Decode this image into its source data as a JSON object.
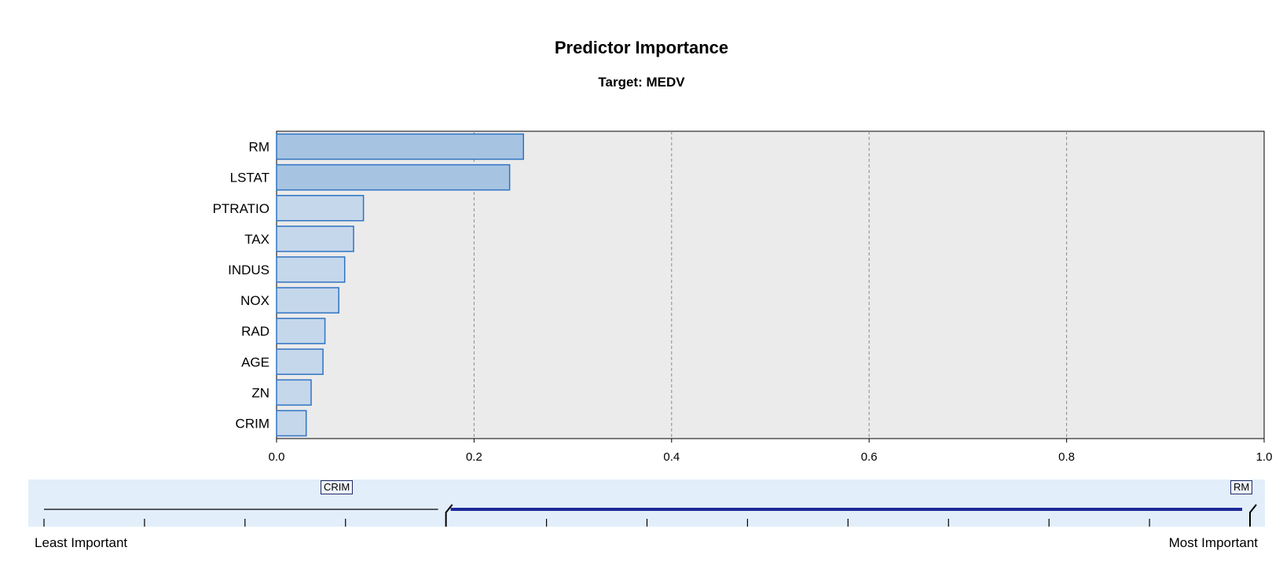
{
  "chart_data": {
    "type": "bar",
    "orientation": "horizontal",
    "title": "Predictor Importance",
    "subtitle": "Target: MEDV",
    "categories": [
      "RM",
      "LSTAT",
      "PTRATIO",
      "TAX",
      "INDUS",
      "NOX",
      "RAD",
      "AGE",
      "ZN",
      "CRIM"
    ],
    "values": [
      0.25,
      0.236,
      0.088,
      0.078,
      0.069,
      0.063,
      0.049,
      0.047,
      0.035,
      0.03
    ],
    "xlim": [
      0,
      1.0
    ],
    "xticks": [
      "0.0",
      "0.2",
      "0.4",
      "0.6",
      "0.8",
      "1.0"
    ],
    "xtick_values": [
      0,
      0.2,
      0.4,
      0.6,
      0.8,
      1.0
    ],
    "grid": "vertical-dashed",
    "colors": {
      "plot_background": "#ebebeb",
      "bar_top_fill": "#a6c4e2",
      "bar_fill": "#c5d7ea",
      "bar_stroke": "#2f73c4",
      "grid": "#8a8a8a"
    },
    "top_highlight_count": 2
  },
  "slider": {
    "left_flag": "CRIM",
    "right_flag": "RM",
    "least_label": "Least Important",
    "most_label": "Most Important",
    "range_start": 0.3333,
    "range_end": 1.0,
    "tick_count": 13,
    "colors": {
      "panel": "#e2eefa",
      "range": "#1f2a99",
      "track": "#000000"
    }
  }
}
